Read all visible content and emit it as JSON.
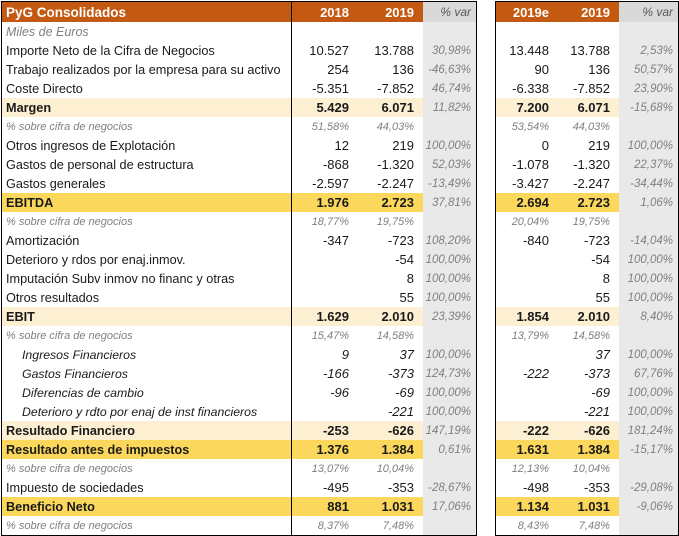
{
  "title": "PyG Consolidados",
  "units_note": "Miles de Euros",
  "colors": {
    "header_bg": "#C45911",
    "header_text": "#FFFFFF",
    "var_header_bg": "#D9D9D9",
    "var_column_bg": "#E9E9E9",
    "highlight_cream": "#FDF0D2",
    "highlight_gold": "#FBD75B",
    "muted_text": "#7F7F7F"
  },
  "left_table": {
    "columns": [
      "2018",
      "2019",
      "% var"
    ]
  },
  "right_table": {
    "columns": [
      "2019e",
      "2019",
      "% var"
    ]
  },
  "rows": [
    {
      "label": "Miles de Euros",
      "style": "sub",
      "l": [
        "",
        "",
        ""
      ],
      "r": [
        "",
        "",
        ""
      ]
    },
    {
      "label": "Importe Neto de la Cifra de Negocios",
      "style": "n",
      "l": [
        "10.527",
        "13.788",
        "30,98%"
      ],
      "r": [
        "13.448",
        "13.788",
        "2,53%"
      ]
    },
    {
      "label": "Trabajo realizados por la empresa para su activo",
      "style": "n",
      "l": [
        "254",
        "136",
        "-46,63%"
      ],
      "r": [
        "90",
        "136",
        "50,57%"
      ]
    },
    {
      "label": "Coste Directo",
      "style": "n",
      "l": [
        "-5.351",
        "-7.852",
        "46,74%"
      ],
      "r": [
        "-6.338",
        "-7.852",
        "23,90%"
      ]
    },
    {
      "label": "Margen",
      "style": "c",
      "l": [
        "5.429",
        "6.071",
        "11,82%"
      ],
      "r": [
        "7.200",
        "6.071",
        "-15,68%"
      ]
    },
    {
      "label": "% sobre cifra de negocios",
      "style": "p",
      "l": [
        "51,58%",
        "44,03%",
        ""
      ],
      "r": [
        "53,54%",
        "44,03%",
        ""
      ]
    },
    {
      "label": "Otros ingresos de Explotación",
      "style": "n",
      "l": [
        "12",
        "219",
        "100,00%"
      ],
      "r": [
        "0",
        "219",
        "100,00%"
      ]
    },
    {
      "label": "Gastos de personal de estructura",
      "style": "n",
      "l": [
        "-868",
        "-1.320",
        "52,03%"
      ],
      "r": [
        "-1.078",
        "-1.320",
        "22,37%"
      ]
    },
    {
      "label": "Gastos generales",
      "style": "n",
      "l": [
        "-2.597",
        "-2.247",
        "-13,49%"
      ],
      "r": [
        "-3.427",
        "-2.247",
        "-34,44%"
      ]
    },
    {
      "label": "EBITDA",
      "style": "g",
      "l": [
        "1.976",
        "2.723",
        "37,81%"
      ],
      "r": [
        "2.694",
        "2.723",
        "1,06%"
      ]
    },
    {
      "label": "% sobre cifra de negocios",
      "style": "p",
      "l": [
        "18,77%",
        "19,75%",
        ""
      ],
      "r": [
        "20,04%",
        "19,75%",
        ""
      ]
    },
    {
      "label": "Amortización",
      "style": "n",
      "l": [
        "-347",
        "-723",
        "108,20%"
      ],
      "r": [
        "-840",
        "-723",
        "-14,04%"
      ]
    },
    {
      "label": "Deterioro y rdos por enaj.inmov.",
      "style": "n",
      "l": [
        "",
        "-54",
        "100,00%"
      ],
      "r": [
        "",
        "-54",
        "100,00%"
      ]
    },
    {
      "label": "Imputación Subv inmov no financ y otras",
      "style": "n",
      "l": [
        "",
        "8",
        "100,00%"
      ],
      "r": [
        "",
        "8",
        "100,00%"
      ]
    },
    {
      "label": "Otros resultados",
      "style": "n",
      "l": [
        "",
        "55",
        "100,00%"
      ],
      "r": [
        "",
        "55",
        "100,00%"
      ]
    },
    {
      "label": "EBIT",
      "style": "c",
      "l": [
        "1.629",
        "2.010",
        "23,39%"
      ],
      "r": [
        "1.854",
        "2.010",
        "8,40%"
      ]
    },
    {
      "label": "% sobre cifra de negocios",
      "style": "p",
      "l": [
        "15,47%",
        "14,58%",
        ""
      ],
      "r": [
        "13,79%",
        "14,58%",
        ""
      ]
    },
    {
      "label": "Ingresos Financieros",
      "style": "f",
      "l": [
        "9",
        "37",
        "100,00%"
      ],
      "r": [
        "",
        "37",
        "100,00%"
      ]
    },
    {
      "label": "Gastos Financieros",
      "style": "f",
      "l": [
        "-166",
        "-373",
        "124,73%"
      ],
      "r": [
        "-222",
        "-373",
        "67,76%"
      ]
    },
    {
      "label": "Diferencias de cambio",
      "style": "f",
      "l": [
        "-96",
        "-69",
        "100,00%"
      ],
      "r": [
        "",
        "-69",
        "100,00%"
      ]
    },
    {
      "label": "Deterioro y rdto por enaj de inst financieros",
      "style": "f",
      "l": [
        "",
        "-221",
        "100,00%"
      ],
      "r": [
        "",
        "-221",
        "100,00%"
      ]
    },
    {
      "label": "Resultado Financiero",
      "style": "c",
      "l": [
        "-253",
        "-626",
        "147,19%"
      ],
      "r": [
        "-222",
        "-626",
        "181,24%"
      ]
    },
    {
      "label": "Resultado antes de impuestos",
      "style": "g",
      "l": [
        "1.376",
        "1.384",
        "0,61%"
      ],
      "r": [
        "1.631",
        "1.384",
        "-15,17%"
      ]
    },
    {
      "label": "% sobre cifra de negocios",
      "style": "p",
      "l": [
        "13,07%",
        "10,04%",
        ""
      ],
      "r": [
        "12,13%",
        "10,04%",
        ""
      ]
    },
    {
      "label": "Impuesto de sociedades",
      "style": "n",
      "l": [
        "-495",
        "-353",
        "-28,67%"
      ],
      "r": [
        "-498",
        "-353",
        "-29,08%"
      ]
    },
    {
      "label": "Beneficio Neto",
      "style": "g",
      "l": [
        "881",
        "1.031",
        "17,06%"
      ],
      "r": [
        "1.134",
        "1.031",
        "-9,06%"
      ]
    },
    {
      "label": "% sobre cifra de negocios",
      "style": "p",
      "l": [
        "8,37%",
        "7,48%",
        ""
      ],
      "r": [
        "8,43%",
        "7,48%",
        ""
      ]
    }
  ]
}
